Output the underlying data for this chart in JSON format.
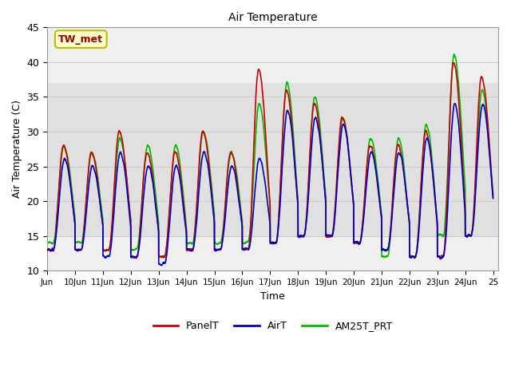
{
  "title": "Air Temperature",
  "ylabel": "Air Temperature (C)",
  "xlabel": "Time",
  "ylim": [
    10,
    45
  ],
  "annotation_text": "TW_met",
  "annotation_color": "#990000",
  "annotation_bg": "#ffffcc",
  "annotation_edge": "#bbbb00",
  "line_colors": {
    "PanelT": "#cc0000",
    "AirT": "#0000cc",
    "AM25T_PRT": "#00bb00"
  },
  "line_widths": {
    "PanelT": 1.2,
    "AirT": 1.2,
    "AM25T_PRT": 1.2
  },
  "shade_band": [
    15,
    37
  ],
  "shade_color": "#e0e0e0",
  "grid_color": "#cccccc",
  "bg_color": "#efefef",
  "yticks": [
    10,
    15,
    20,
    25,
    30,
    35,
    40,
    45
  ],
  "font_size": 9
}
